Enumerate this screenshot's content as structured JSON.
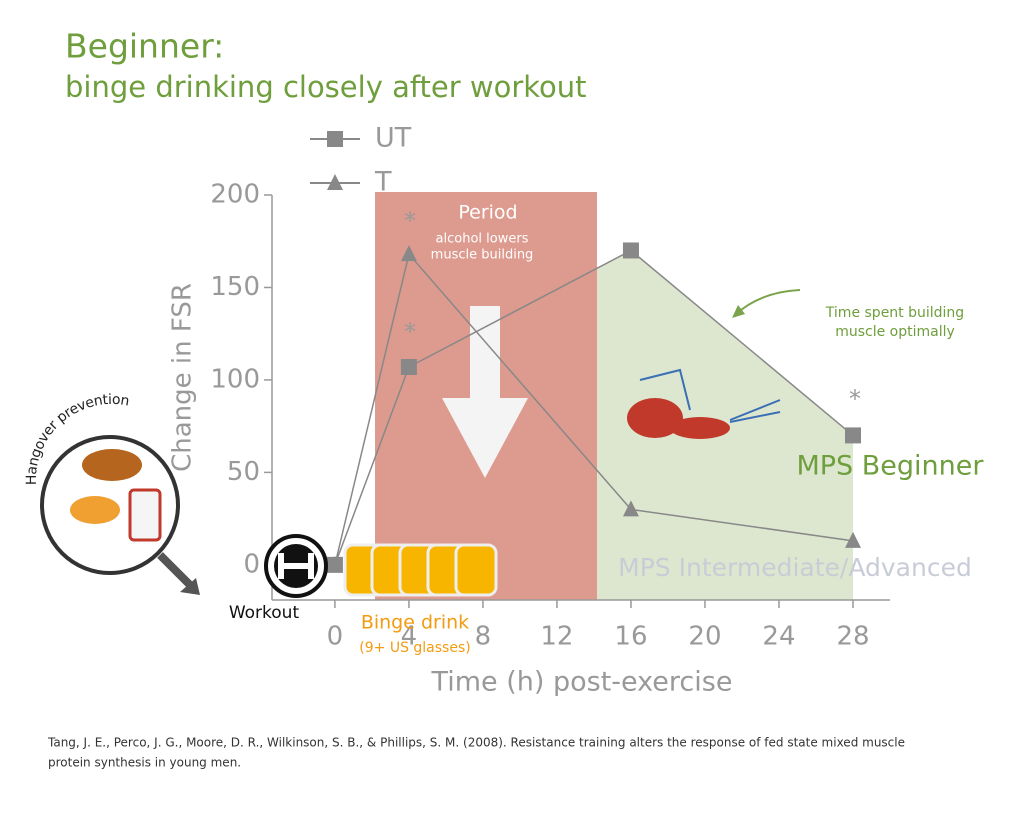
{
  "chart_data": {
    "type": "line",
    "title": "Beginner:",
    "subtitle": "binge drinking closely after workout",
    "x_label": "Time (h) post-exercise",
    "y_label": "Change in FSR",
    "x": [
      0,
      4,
      16,
      28
    ],
    "series": [
      {
        "name": "UT",
        "color": "#888888",
        "marker": "square",
        "values": [
          0,
          107,
          170,
          70
        ]
      },
      {
        "name": "T",
        "color": "#888888",
        "marker": "triangle",
        "values": [
          0,
          168,
          30,
          13
        ]
      }
    ],
    "xlim": [
      -3.4,
      30
    ],
    "ylim": [
      -19,
      200
    ],
    "xticks": [
      0,
      4,
      8,
      12,
      16,
      20,
      24,
      28
    ],
    "yticks": [
      0,
      50,
      100,
      150,
      200
    ],
    "annotations": {
      "period": "Period",
      "period_note": [
        "alcohol lowers",
        "muscle building"
      ],
      "time_spent": [
        "Time spent building",
        "muscle optimally"
      ],
      "mps_beginner": "MPS Beginner",
      "mps_advanced": "MPS Intermediate/Advanced",
      "hangover": "Hangover prevention",
      "workout": "Workout",
      "binge": "Binge drink",
      "glasses": "(9+ US glasses)",
      "asterisks": [
        "*",
        "*",
        "*"
      ]
    },
    "citation": [
      "Tang, J. E., Perco, J. G., Moore, D. R., Wilkinson, S. B., & Phillips, S. M. (2008). Resistance training alters the response of fed state mixed muscle",
      "protein synthesis in young men."
    ]
  }
}
